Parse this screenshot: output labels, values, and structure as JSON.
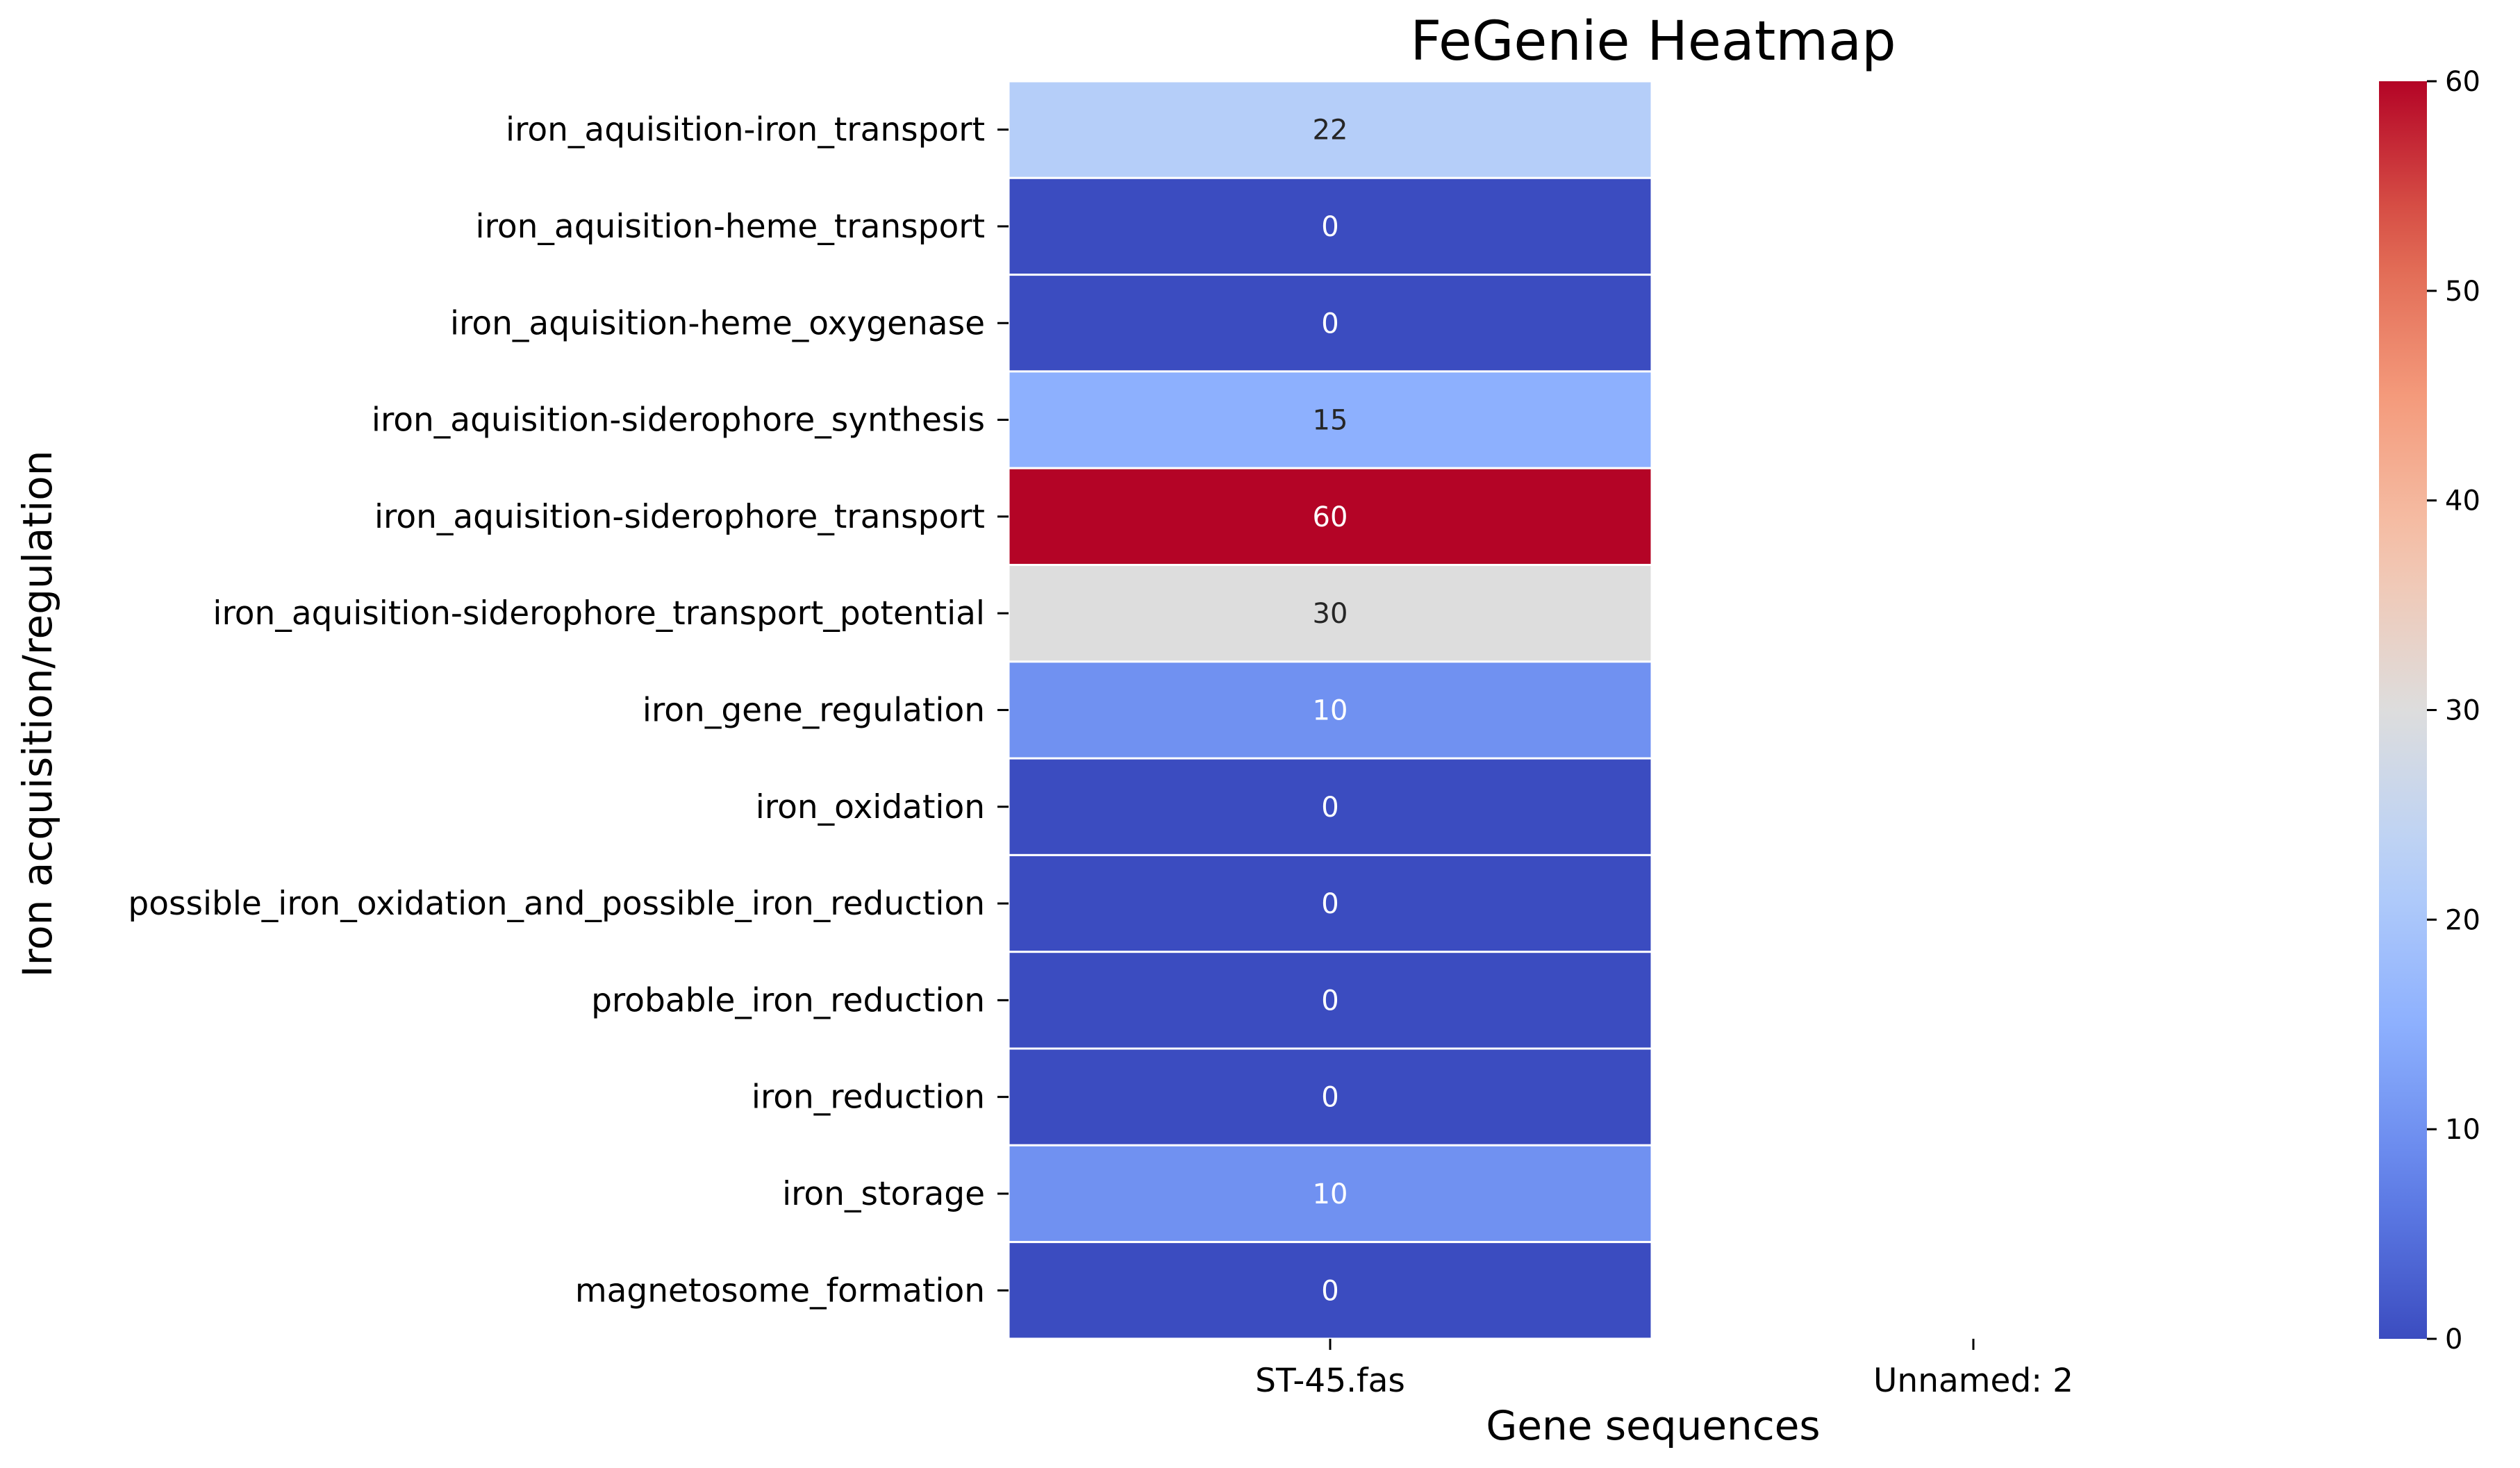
{
  "chart_data": {
    "type": "heatmap",
    "title": "FeGenie Heatmap",
    "xlabel": "Gene sequences",
    "ylabel": "Iron acquisition/regulation",
    "columns": [
      "ST-45.fas",
      "Unnamed: 2"
    ],
    "rows": [
      "iron_aquisition-iron_transport",
      "iron_aquisition-heme_transport",
      "iron_aquisition-heme_oxygenase",
      "iron_aquisition-siderophore_synthesis",
      "iron_aquisition-siderophore_transport",
      "iron_aquisition-siderophore_transport_potential",
      "iron_gene_regulation",
      "iron_oxidation",
      "possible_iron_oxidation_and_possible_iron_reduction",
      "probable_iron_reduction",
      "iron_reduction",
      "iron_storage",
      "magnetosome_formation"
    ],
    "values": [
      [
        22,
        null
      ],
      [
        0,
        null
      ],
      [
        0,
        null
      ],
      [
        15,
        null
      ],
      [
        60,
        null
      ],
      [
        30,
        null
      ],
      [
        10,
        null
      ],
      [
        0,
        null
      ],
      [
        0,
        null
      ],
      [
        0,
        null
      ],
      [
        0,
        null
      ],
      [
        10,
        null
      ],
      [
        0,
        null
      ]
    ],
    "colormap": "coolwarm",
    "vmin": 0,
    "vmax": 60,
    "colorbar_ticks": [
      0,
      10,
      20,
      30,
      40,
      50,
      60
    ],
    "annotations": true,
    "cell_border_color": "#ffffff"
  }
}
